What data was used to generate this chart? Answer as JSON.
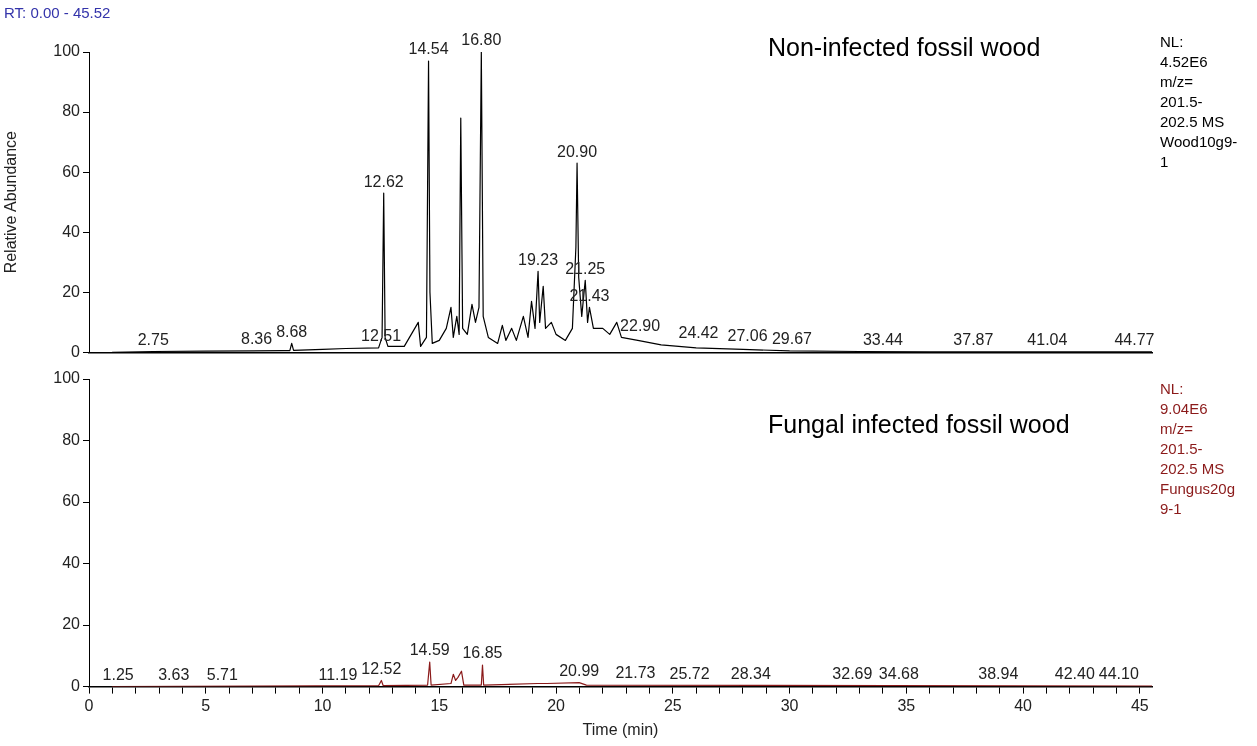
{
  "chart_data": [
    {
      "type": "line",
      "title": "Non-infected fossil wood",
      "subtitle": "RT: 0.00 - 45.52",
      "ylabel": "Relative Abundance",
      "xlim": [
        0,
        45.52
      ],
      "ylim": [
        0,
        100
      ],
      "yticks": [
        0,
        20,
        40,
        60,
        80,
        100
      ],
      "tick_labels": "y",
      "grid": false,
      "legend": false,
      "marker": "none",
      "series": [
        {
          "color": "#000000",
          "x": [
            1.0,
            2.75,
            5,
            8.36,
            8.6,
            8.68,
            8.76,
            10,
            11,
            12.4,
            12.55,
            12.62,
            12.68,
            12.8,
            13.5,
            14.1,
            14.2,
            14.45,
            14.54,
            14.6,
            14.7,
            15.0,
            15.3,
            15.5,
            15.6,
            15.75,
            15.85,
            15.92,
            16.0,
            16.2,
            16.4,
            16.55,
            16.7,
            16.8,
            16.88,
            17.1,
            17.5,
            17.7,
            17.85,
            18.1,
            18.3,
            18.6,
            18.8,
            18.95,
            19.1,
            19.23,
            19.3,
            19.45,
            19.55,
            19.8,
            20.0,
            20.4,
            20.7,
            20.85,
            20.9,
            20.97,
            21.1,
            21.25,
            21.35,
            21.43,
            21.6,
            22.0,
            22.3,
            22.6,
            22.8,
            23.5,
            24.5,
            26,
            28,
            30,
            33,
            36,
            40,
            45.5
          ],
          "values": [
            0,
            0.3,
            0.4,
            0.6,
            0.6,
            3,
            0.7,
            1,
            1.3,
            1.5,
            5,
            53,
            5,
            2,
            2,
            10,
            2,
            5,
            97,
            20,
            3,
            4,
            8,
            15,
            5,
            12,
            6,
            78,
            8,
            6,
            16,
            10,
            15,
            100,
            12,
            5,
            3,
            9,
            4,
            8,
            4,
            12,
            5,
            17,
            8,
            27,
            10,
            22,
            8,
            10,
            6,
            4,
            8,
            35,
            63,
            25,
            12,
            24,
            10,
            15,
            8,
            8,
            6,
            10,
            5,
            4,
            2.5,
            1.5,
            1,
            0.5,
            0.3,
            0.2,
            0.2,
            0.2
          ]
        }
      ],
      "annotations": [
        "NL:\n4.52E6\nm/z=\n201.5-\n202.5 MS\nWood10g9-\n1",
        {
          "text": "2.75",
          "x": 2.75,
          "y": 0.3
        },
        {
          "text": "8.36",
          "x": 8.36,
          "y": 0.6
        },
        {
          "text": "8.68",
          "x": 8.68,
          "y": 3
        },
        {
          "text": "12.51",
          "x": 12.51,
          "y": 1.5
        },
        {
          "text": "12.62",
          "x": 12.62,
          "y": 53
        },
        {
          "text": "14.54",
          "x": 14.54,
          "y": 97
        },
        {
          "text": "16.80",
          "x": 16.8,
          "y": 100
        },
        {
          "text": "19.23",
          "x": 19.23,
          "y": 27
        },
        {
          "text": "20.90",
          "x": 20.9,
          "y": 63
        },
        {
          "text": "21.25",
          "x": 21.25,
          "y": 24
        },
        {
          "text": "21.43",
          "x": 21.43,
          "y": 15
        },
        {
          "text": "22.90",
          "x": 23.6,
          "y": 5
        },
        {
          "text": "24.42",
          "x": 26.1,
          "y": 2.5
        },
        {
          "text": "27.06",
          "x": 28.2,
          "y": 1.5
        },
        {
          "text": "29.67",
          "x": 30.1,
          "y": 0.5
        },
        {
          "text": "33.44",
          "x": 34.0,
          "y": 0.3
        },
        {
          "text": "37.87",
          "x": 37.87,
          "y": 0.2
        },
        {
          "text": "41.04",
          "x": 41.04,
          "y": 0.2
        },
        {
          "text": "44.77",
          "x": 44.77,
          "y": 0.2
        }
      ]
    },
    {
      "type": "line",
      "title": "Fungal infected fossil wood",
      "xlabel": "Time (min)",
      "xlim": [
        0,
        45.52
      ],
      "ylim": [
        0,
        100
      ],
      "yticks": [
        0,
        20,
        40,
        60,
        80,
        100
      ],
      "xticks": [
        0,
        {
          "value": 1,
          "label": null
        },
        {
          "value": 2,
          "label": null
        },
        {
          "value": 3,
          "label": null
        },
        {
          "value": 4,
          "label": null
        },
        5,
        {
          "value": 6,
          "label": null
        },
        {
          "value": 7,
          "label": null
        },
        {
          "value": 8,
          "label": null
        },
        {
          "value": 9,
          "label": null
        },
        10,
        {
          "value": 11,
          "label": null
        },
        {
          "value": 12,
          "label": null
        },
        {
          "value": 13,
          "label": null
        },
        {
          "value": 14,
          "label": null
        },
        15,
        {
          "value": 16,
          "label": null
        },
        {
          "value": 17,
          "label": null
        },
        {
          "value": 18,
          "label": null
        },
        {
          "value": 19,
          "label": null
        },
        20,
        {
          "value": 21,
          "label": null
        },
        {
          "value": 22,
          "label": null
        },
        {
          "value": 23,
          "label": null
        },
        {
          "value": 24,
          "label": null
        },
        25,
        {
          "value": 26,
          "label": null
        },
        {
          "value": 27,
          "label": null
        },
        {
          "value": 28,
          "label": null
        },
        {
          "value": 29,
          "label": null
        },
        30,
        {
          "value": 31,
          "label": null
        },
        {
          "value": 32,
          "label": null
        },
        {
          "value": 33,
          "label": null
        },
        {
          "value": 34,
          "label": null
        },
        35,
        {
          "value": 36,
          "label": null
        },
        {
          "value": 37,
          "label": null
        },
        {
          "value": 38,
          "label": null
        },
        {
          "value": 39,
          "label": null
        },
        40,
        {
          "value": 41,
          "label": null
        },
        {
          "value": 42,
          "label": null
        },
        {
          "value": 43,
          "label": null
        },
        {
          "value": 44,
          "label": null
        },
        45
      ],
      "grid": false,
      "legend": false,
      "marker": "none",
      "series": [
        {
          "color": "#8b1a1a",
          "x": [
            1.0,
            12.4,
            12.52,
            12.6,
            14.5,
            14.59,
            14.65,
            15.5,
            15.6,
            15.7,
            15.8,
            15.95,
            16.05,
            16.8,
            16.85,
            16.9,
            19.2,
            19.6,
            20.99,
            21.3,
            45.5
          ],
          "values": [
            0,
            0.3,
            2,
            0.3,
            0.5,
            8,
            0.5,
            1,
            4,
            2,
            3,
            5,
            0.5,
            0.5,
            7,
            0.5,
            1,
            1,
            1.3,
            0.5,
            0.2
          ]
        }
      ],
      "annotations": [
        "NL:\n9.04E6\nm/z=\n201.5-\n202.5 MS\nFungus20g\n9-1",
        {
          "text": "1.25",
          "x": 1.25,
          "y": 0
        },
        {
          "text": "3.63",
          "x": 3.63,
          "y": 0
        },
        {
          "text": "5.71",
          "x": 5.71,
          "y": 0
        },
        {
          "text": "11.19",
          "x": 11.19,
          "y": 0
        },
        {
          "text": "12.52",
          "x": 12.52,
          "y": 2
        },
        {
          "text": "14.59",
          "x": 14.59,
          "y": 8
        },
        {
          "text": "16.85",
          "x": 16.85,
          "y": 7
        },
        {
          "text": "20.99",
          "x": 20.99,
          "y": 1.3
        },
        {
          "text": "21.73",
          "x": 23.4,
          "y": 0.5
        },
        {
          "text": "25.72",
          "x": 25.72,
          "y": 0.3
        },
        {
          "text": "28.34",
          "x": 28.34,
          "y": 0.3
        },
        {
          "text": "32.69",
          "x": 32.69,
          "y": 0.3
        },
        {
          "text": "34.68",
          "x": 34.68,
          "y": 0.3
        },
        {
          "text": "38.94",
          "x": 38.94,
          "y": 0.2
        },
        {
          "text": "42.40",
          "x": 42.4,
          "y": 0.2
        },
        {
          "text": "44.10",
          "x": 44.1,
          "y": 0.2
        }
      ]
    }
  ]
}
